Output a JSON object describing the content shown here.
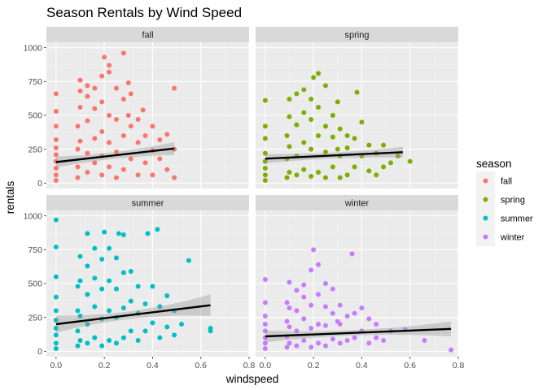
{
  "chart_data": {
    "type": "scatter",
    "title": "Season Rentals by Wind Speed",
    "xlabel": "windspeed",
    "ylabel": "rentals",
    "xlim": [
      -0.04,
      0.8
    ],
    "ylim": [
      -40,
      1040
    ],
    "x_ticks": [
      0.0,
      0.2,
      0.4,
      0.6,
      0.8
    ],
    "x_tick_labels": [
      "0.0",
      "0.2",
      "0.4",
      "0.6",
      "0.8"
    ],
    "y_ticks": [
      0,
      250,
      500,
      750,
      1000
    ],
    "y_tick_labels": [
      "0",
      "250",
      "500",
      "750",
      "1000"
    ],
    "grid": true,
    "legend": {
      "title": "season",
      "position": "right"
    },
    "facets": [
      {
        "name": "fall",
        "color": "#F8766D",
        "trend": {
          "x": [
            0.0,
            0.49
          ],
          "y": [
            155,
            255
          ]
        },
        "ci_halfwidth": [
          25,
          48
        ],
        "points": [
          [
            0,
            20
          ],
          [
            0,
            60
          ],
          [
            0,
            110
          ],
          [
            0,
            160
          ],
          [
            0,
            210
          ],
          [
            0,
            260
          ],
          [
            0,
            320
          ],
          [
            0,
            420
          ],
          [
            0,
            530
          ],
          [
            0,
            660
          ],
          [
            0.09,
            40
          ],
          [
            0.09,
            120
          ],
          [
            0.09,
            250
          ],
          [
            0.09,
            420
          ],
          [
            0.1,
            310
          ],
          [
            0.1,
            560
          ],
          [
            0.1,
            680
          ],
          [
            0.1,
            760
          ],
          [
            0.13,
            80
          ],
          [
            0.13,
            220
          ],
          [
            0.13,
            460
          ],
          [
            0.13,
            640
          ],
          [
            0.13,
            720
          ],
          [
            0.16,
            150
          ],
          [
            0.16,
            330
          ],
          [
            0.16,
            550
          ],
          [
            0.16,
            700
          ],
          [
            0.19,
            60
          ],
          [
            0.19,
            200
          ],
          [
            0.19,
            380
          ],
          [
            0.19,
            600
          ],
          [
            0.19,
            790
          ],
          [
            0.2,
            930
          ],
          [
            0.22,
            120
          ],
          [
            0.22,
            300
          ],
          [
            0.22,
            500
          ],
          [
            0.22,
            820
          ],
          [
            0.22,
            870
          ],
          [
            0.25,
            40
          ],
          [
            0.25,
            230
          ],
          [
            0.25,
            470
          ],
          [
            0.25,
            700
          ],
          [
            0.28,
            100
          ],
          [
            0.28,
            350
          ],
          [
            0.28,
            620
          ],
          [
            0.28,
            960
          ],
          [
            0.3,
            500
          ],
          [
            0.3,
            740
          ],
          [
            0.31,
            180
          ],
          [
            0.31,
            420
          ],
          [
            0.31,
            660
          ],
          [
            0.34,
            60
          ],
          [
            0.34,
            300
          ],
          [
            0.34,
            470
          ],
          [
            0.36,
            540
          ],
          [
            0.37,
            150
          ],
          [
            0.37,
            350
          ],
          [
            0.4,
            240
          ],
          [
            0.4,
            420
          ],
          [
            0.4,
            60
          ],
          [
            0.43,
            180
          ],
          [
            0.43,
            320
          ],
          [
            0.46,
            100
          ],
          [
            0.46,
            360
          ],
          [
            0.49,
            40
          ],
          [
            0.49,
            250
          ],
          [
            0.49,
            700
          ]
        ]
      },
      {
        "name": "spring",
        "color": "#7CAE00",
        "trend": {
          "x": [
            0.0,
            0.57
          ],
          "y": [
            180,
            228
          ]
        },
        "ci_halfwidth": [
          22,
          40
        ],
        "points": [
          [
            0,
            20
          ],
          [
            0,
            60
          ],
          [
            0,
            110
          ],
          [
            0,
            160
          ],
          [
            0,
            220
          ],
          [
            0,
            330
          ],
          [
            0,
            420
          ],
          [
            0,
            610
          ],
          [
            0.09,
            40
          ],
          [
            0.09,
            180
          ],
          [
            0.09,
            350
          ],
          [
            0.1,
            80
          ],
          [
            0.1,
            270
          ],
          [
            0.1,
            490
          ],
          [
            0.1,
            620
          ],
          [
            0.13,
            60
          ],
          [
            0.13,
            200
          ],
          [
            0.13,
            430
          ],
          [
            0.13,
            660
          ],
          [
            0.16,
            100
          ],
          [
            0.16,
            300
          ],
          [
            0.16,
            520
          ],
          [
            0.16,
            690
          ],
          [
            0.19,
            50
          ],
          [
            0.19,
            250
          ],
          [
            0.19,
            470
          ],
          [
            0.19,
            620
          ],
          [
            0.2,
            780
          ],
          [
            0.22,
            80
          ],
          [
            0.22,
            350
          ],
          [
            0.22,
            560
          ],
          [
            0.22,
            810
          ],
          [
            0.25,
            40
          ],
          [
            0.25,
            230
          ],
          [
            0.25,
            420
          ],
          [
            0.25,
            720
          ],
          [
            0.28,
            120
          ],
          [
            0.28,
            340
          ],
          [
            0.28,
            500
          ],
          [
            0.3,
            250
          ],
          [
            0.3,
            600
          ],
          [
            0.31,
            40
          ],
          [
            0.31,
            200
          ],
          [
            0.31,
            400
          ],
          [
            0.34,
            60
          ],
          [
            0.34,
            260
          ],
          [
            0.34,
            350
          ],
          [
            0.37,
            120
          ],
          [
            0.37,
            330
          ],
          [
            0.38,
            670
          ],
          [
            0.4,
            200
          ],
          [
            0.4,
            450
          ],
          [
            0.43,
            90
          ],
          [
            0.43,
            280
          ],
          [
            0.46,
            60
          ],
          [
            0.46,
            220
          ],
          [
            0.49,
            120
          ],
          [
            0.49,
            280
          ],
          [
            0.52,
            150
          ],
          [
            0.55,
            200
          ],
          [
            0.6,
            160
          ]
        ]
      },
      {
        "name": "summer",
        "color": "#00BFC4",
        "trend": {
          "x": [
            0.0,
            0.64
          ],
          "y": [
            200,
            340
          ]
        },
        "ci_halfwidth": [
          28,
          80
        ],
        "points": [
          [
            0,
            20
          ],
          [
            0,
            60
          ],
          [
            0,
            120
          ],
          [
            0,
            170
          ],
          [
            0,
            230
          ],
          [
            0,
            300
          ],
          [
            0,
            400
          ],
          [
            0,
            550
          ],
          [
            0,
            770
          ],
          [
            0,
            970
          ],
          [
            0.09,
            40
          ],
          [
            0.09,
            150
          ],
          [
            0.09,
            300
          ],
          [
            0.09,
            480
          ],
          [
            0.1,
            80
          ],
          [
            0.1,
            260
          ],
          [
            0.1,
            520
          ],
          [
            0.1,
            700
          ],
          [
            0.13,
            60
          ],
          [
            0.13,
            200
          ],
          [
            0.13,
            420
          ],
          [
            0.13,
            630
          ],
          [
            0.13,
            870
          ],
          [
            0.16,
            100
          ],
          [
            0.16,
            330
          ],
          [
            0.16,
            540
          ],
          [
            0.16,
            760
          ],
          [
            0.19,
            40
          ],
          [
            0.19,
            240
          ],
          [
            0.19,
            460
          ],
          [
            0.19,
            680
          ],
          [
            0.2,
            880
          ],
          [
            0.22,
            80
          ],
          [
            0.22,
            300
          ],
          [
            0.22,
            520
          ],
          [
            0.22,
            760
          ],
          [
            0.25,
            60
          ],
          [
            0.25,
            250
          ],
          [
            0.25,
            460
          ],
          [
            0.25,
            690
          ],
          [
            0.26,
            870
          ],
          [
            0.28,
            100
          ],
          [
            0.28,
            320
          ],
          [
            0.28,
            580
          ],
          [
            0.28,
            860
          ],
          [
            0.31,
            150
          ],
          [
            0.31,
            370
          ],
          [
            0.31,
            590
          ],
          [
            0.34,
            80
          ],
          [
            0.34,
            280
          ],
          [
            0.34,
            480
          ],
          [
            0.37,
            150
          ],
          [
            0.37,
            350
          ],
          [
            0.38,
            870
          ],
          [
            0.4,
            210
          ],
          [
            0.4,
            480
          ],
          [
            0.42,
            900
          ],
          [
            0.43,
            100
          ],
          [
            0.43,
            330
          ],
          [
            0.46,
            180
          ],
          [
            0.46,
            410
          ],
          [
            0.49,
            120
          ],
          [
            0.49,
            300
          ],
          [
            0.52,
            200
          ],
          [
            0.55,
            670
          ],
          [
            0.64,
            150
          ],
          [
            0.64,
            170
          ]
        ]
      },
      {
        "name": "winter",
        "color": "#C77CFF",
        "trend": {
          "x": [
            0.0,
            0.77
          ],
          "y": [
            110,
            165
          ]
        },
        "ci_halfwidth": [
          20,
          55
        ],
        "points": [
          [
            0,
            20
          ],
          [
            0,
            60
          ],
          [
            0,
            100
          ],
          [
            0,
            150
          ],
          [
            0,
            200
          ],
          [
            0,
            260
          ],
          [
            0,
            360
          ],
          [
            0,
            530
          ],
          [
            0.09,
            30
          ],
          [
            0.09,
            110
          ],
          [
            0.09,
            220
          ],
          [
            0.09,
            360
          ],
          [
            0.1,
            60
          ],
          [
            0.1,
            180
          ],
          [
            0.1,
            320
          ],
          [
            0.1,
            510
          ],
          [
            0.13,
            40
          ],
          [
            0.13,
            150
          ],
          [
            0.13,
            300
          ],
          [
            0.13,
            450
          ],
          [
            0.16,
            80
          ],
          [
            0.16,
            240
          ],
          [
            0.16,
            400
          ],
          [
            0.16,
            490
          ],
          [
            0.19,
            30
          ],
          [
            0.19,
            170
          ],
          [
            0.19,
            340
          ],
          [
            0.19,
            600
          ],
          [
            0.2,
            750
          ],
          [
            0.22,
            60
          ],
          [
            0.22,
            200
          ],
          [
            0.22,
            420
          ],
          [
            0.22,
            640
          ],
          [
            0.25,
            40
          ],
          [
            0.25,
            190
          ],
          [
            0.25,
            330
          ],
          [
            0.25,
            500
          ],
          [
            0.28,
            90
          ],
          [
            0.28,
            280
          ],
          [
            0.28,
            460
          ],
          [
            0.3,
            220
          ],
          [
            0.31,
            60
          ],
          [
            0.31,
            200
          ],
          [
            0.31,
            340
          ],
          [
            0.34,
            80
          ],
          [
            0.34,
            260
          ],
          [
            0.36,
            720
          ],
          [
            0.37,
            100
          ],
          [
            0.37,
            280
          ],
          [
            0.4,
            150
          ],
          [
            0.4,
            320
          ],
          [
            0.43,
            60
          ],
          [
            0.43,
            240
          ],
          [
            0.46,
            100
          ],
          [
            0.46,
            200
          ],
          [
            0.49,
            80
          ],
          [
            0.52,
            150
          ],
          [
            0.58,
            160
          ],
          [
            0.66,
            80
          ],
          [
            0.77,
            10
          ]
        ]
      }
    ]
  }
}
